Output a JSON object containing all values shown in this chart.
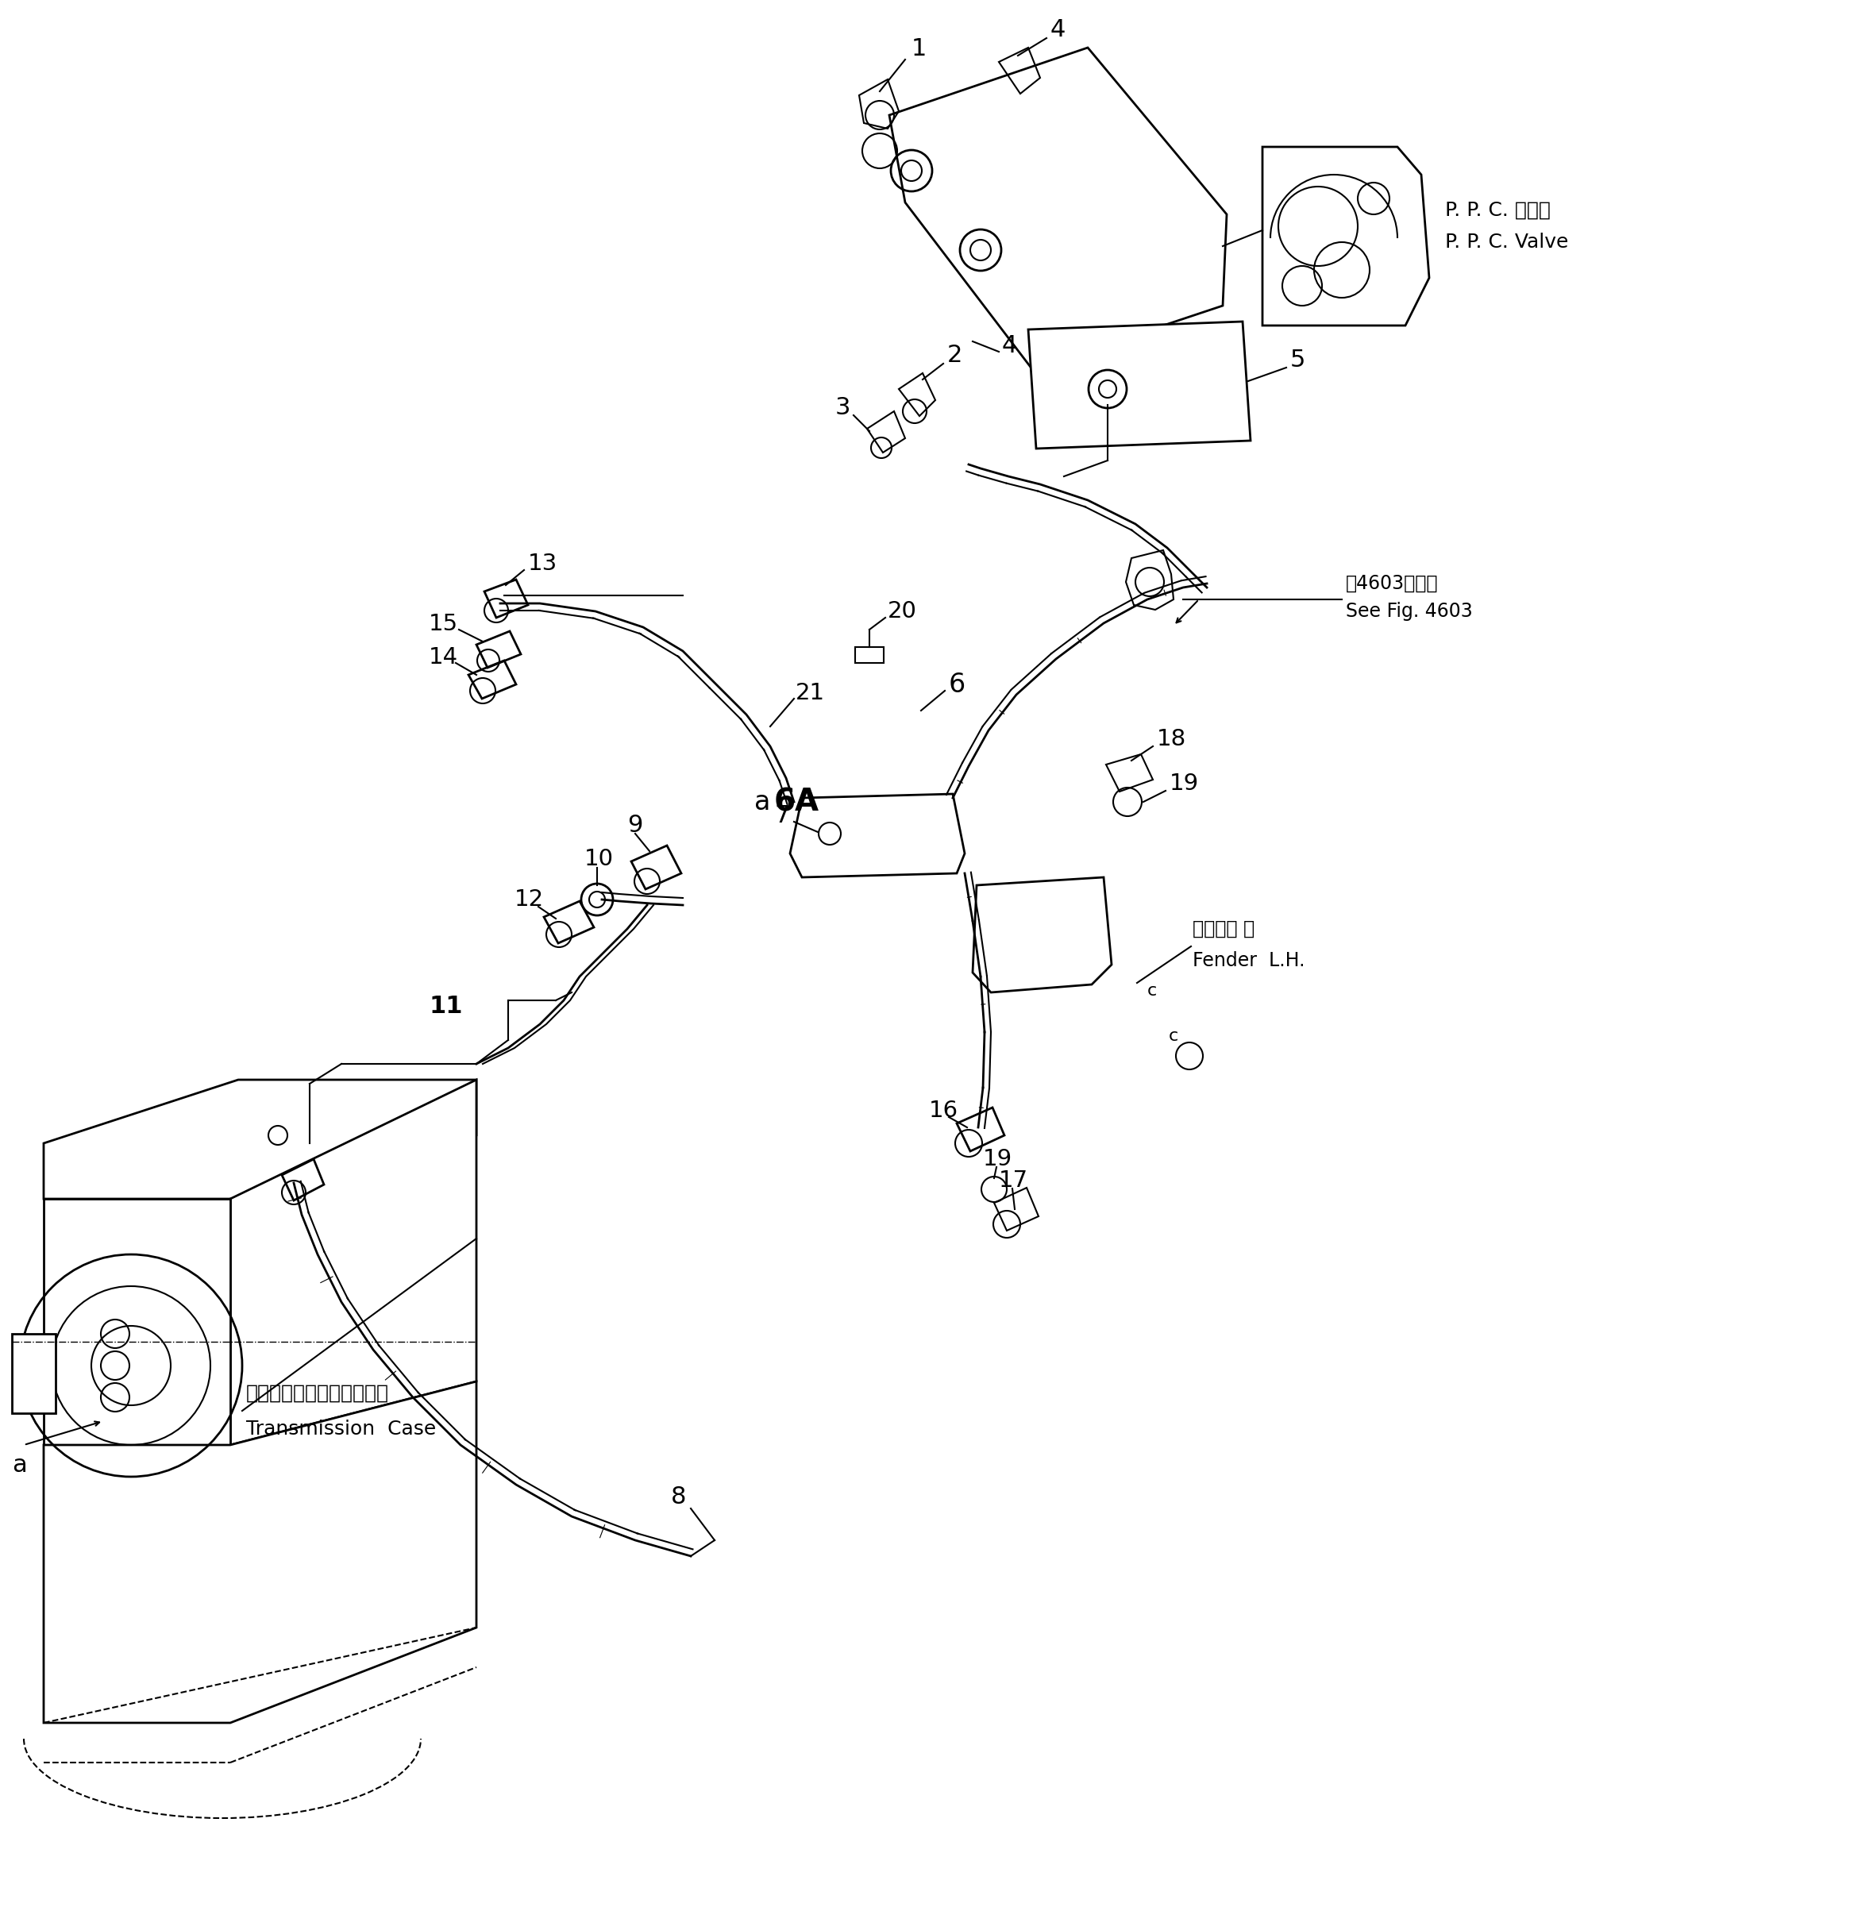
{
  "fig_width": 23.3,
  "fig_height": 24.07,
  "bg_color": "#ffffff",
  "line_color": "#000000",
  "labels": {
    "ppc_valve_jp": "P. P. C. ハルブ",
    "ppc_valve_en": "P. P. C. Valve",
    "transmission_jp": "トランスミッションケース",
    "transmission_en": "Transmission  Case",
    "fender_jp": "フェンダ 左",
    "fender_en": "Fender  L.H.",
    "see_fig_jp": "第4603図参照",
    "see_fig_en": "See Fig. 4603"
  }
}
